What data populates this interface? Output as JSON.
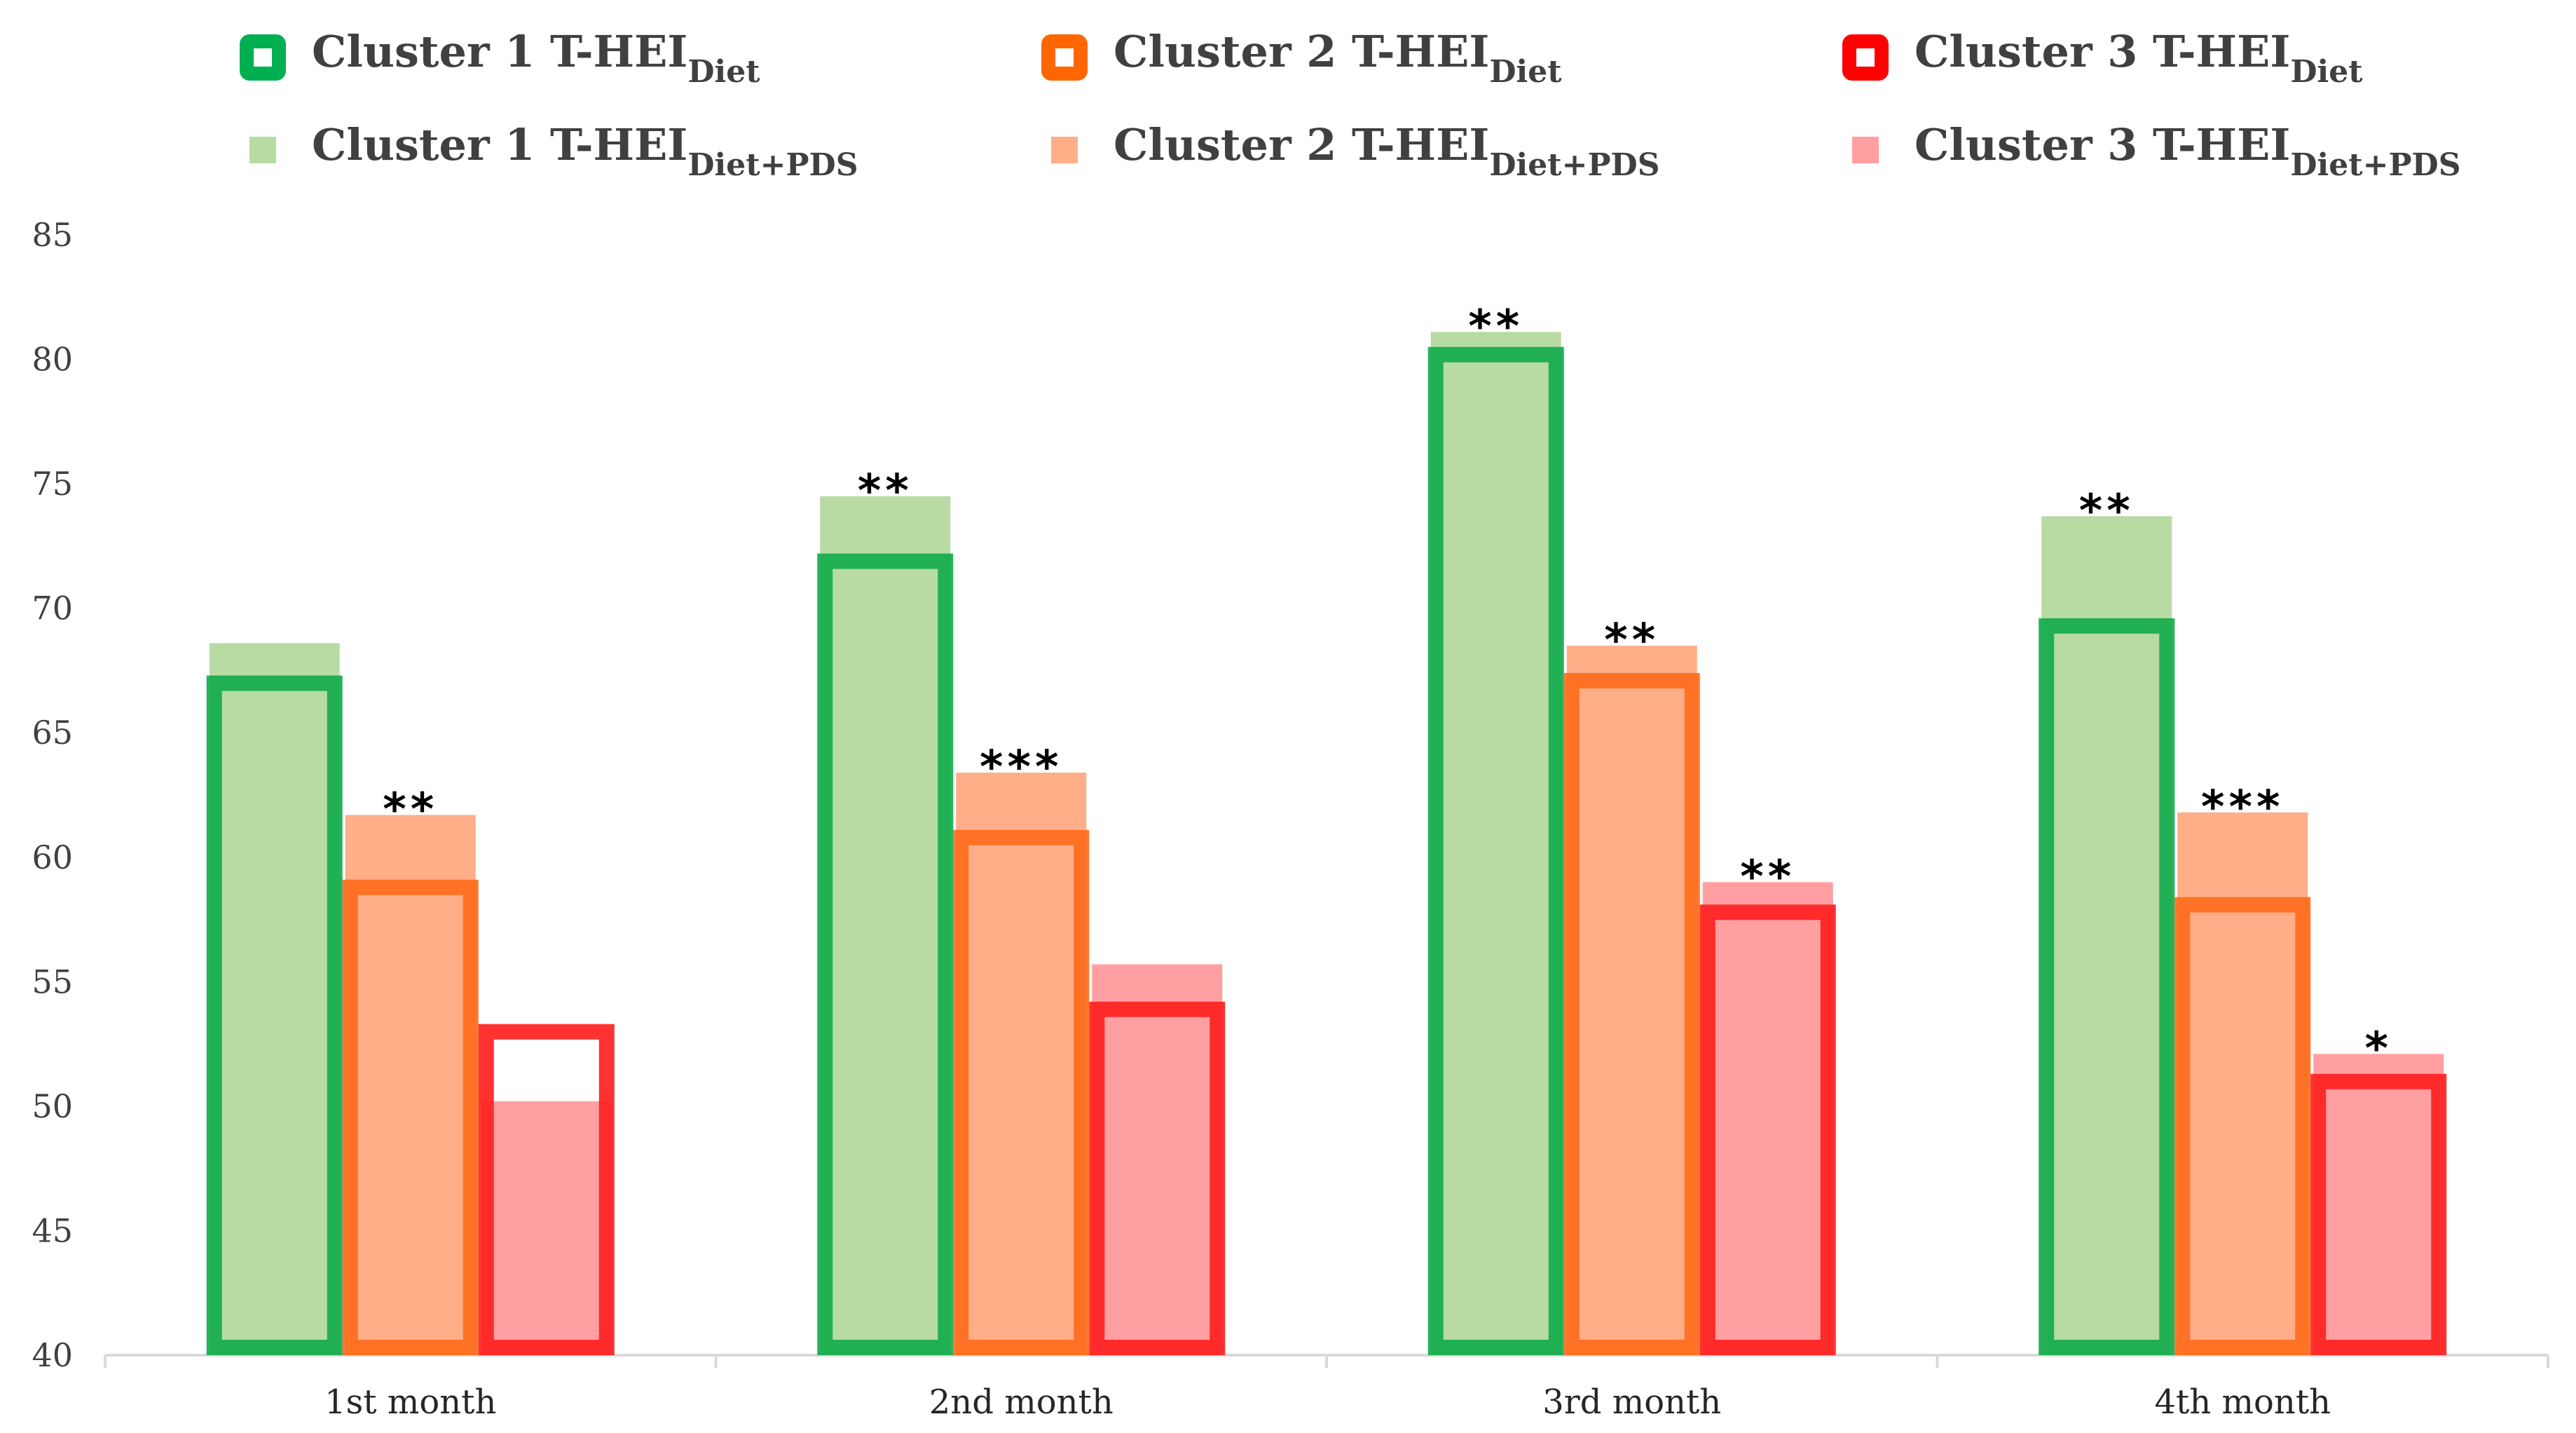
{
  "chart_data": {
    "type": "bar",
    "categories": [
      "1st month",
      "2nd month",
      "3rd month",
      "4th month"
    ],
    "ylim": [
      40,
      85
    ],
    "yticks": [
      40,
      45,
      50,
      55,
      60,
      65,
      70,
      75,
      80,
      85
    ],
    "grid": false,
    "legend_position": "top",
    "legend": [
      {
        "base": "Cluster 1 T-HEI",
        "sub": "Diet",
        "kind": "outline",
        "color": "#00b050"
      },
      {
        "base": "Cluster 2 T-HEI",
        "sub": "Diet",
        "kind": "outline",
        "color": "#ff6600"
      },
      {
        "base": "Cluster 3 T-HEI",
        "sub": "Diet",
        "kind": "outline",
        "color": "#ff0000"
      },
      {
        "base": "Cluster 1 T-HEI",
        "sub": "Diet+PDS",
        "kind": "fill",
        "color": "#b8dba4"
      },
      {
        "base": "Cluster 2 T-HEI",
        "sub": "Diet+PDS",
        "kind": "fill",
        "color": "#ffae88"
      },
      {
        "base": "Cluster 3 T-HEI",
        "sub": "Diet+PDS",
        "kind": "fill",
        "color": "#ff9fa2"
      }
    ],
    "series": [
      {
        "name": "Cluster 1 T-HEIDiet",
        "cluster": 1,
        "kind": "outline",
        "color": "#12ab4c",
        "values": [
          67.3,
          72.2,
          80.5,
          69.6
        ]
      },
      {
        "name": "Cluster 2 T-HEIDiet",
        "cluster": 2,
        "kind": "outline",
        "color": "#ff6b1c",
        "values": [
          59.1,
          61.1,
          67.4,
          58.4
        ]
      },
      {
        "name": "Cluster 3 T-HEIDiet",
        "cluster": 3,
        "kind": "outline",
        "color": "#ff2020",
        "values": [
          53.3,
          54.2,
          58.1,
          51.3
        ]
      },
      {
        "name": "Cluster 1 T-HEIDiet+PDS",
        "cluster": 1,
        "kind": "fill",
        "color": "#b8dba4",
        "values": [
          68.6,
          74.5,
          81.1,
          73.7
        ]
      },
      {
        "name": "Cluster 2 T-HEIDiet+PDS",
        "cluster": 2,
        "kind": "fill",
        "color": "#ffae88",
        "values": [
          61.7,
          63.4,
          68.5,
          61.8
        ]
      },
      {
        "name": "Cluster 3 T-HEIDiet+PDS",
        "cluster": 3,
        "kind": "fill",
        "color": "#ff9fa2",
        "values": [
          50.2,
          55.7,
          59.0,
          52.1
        ]
      }
    ],
    "annotations": [
      {
        "category": 0,
        "cluster": 2,
        "text": "**"
      },
      {
        "category": 1,
        "cluster": 1,
        "text": "**"
      },
      {
        "category": 1,
        "cluster": 2,
        "text": "***"
      },
      {
        "category": 2,
        "cluster": 1,
        "text": "**"
      },
      {
        "category": 2,
        "cluster": 2,
        "text": "**"
      },
      {
        "category": 2,
        "cluster": 3,
        "text": "**"
      },
      {
        "category": 3,
        "cluster": 1,
        "text": "**"
      },
      {
        "category": 3,
        "cluster": 2,
        "text": "***"
      },
      {
        "category": 3,
        "cluster": 3,
        "text": "*"
      }
    ]
  }
}
